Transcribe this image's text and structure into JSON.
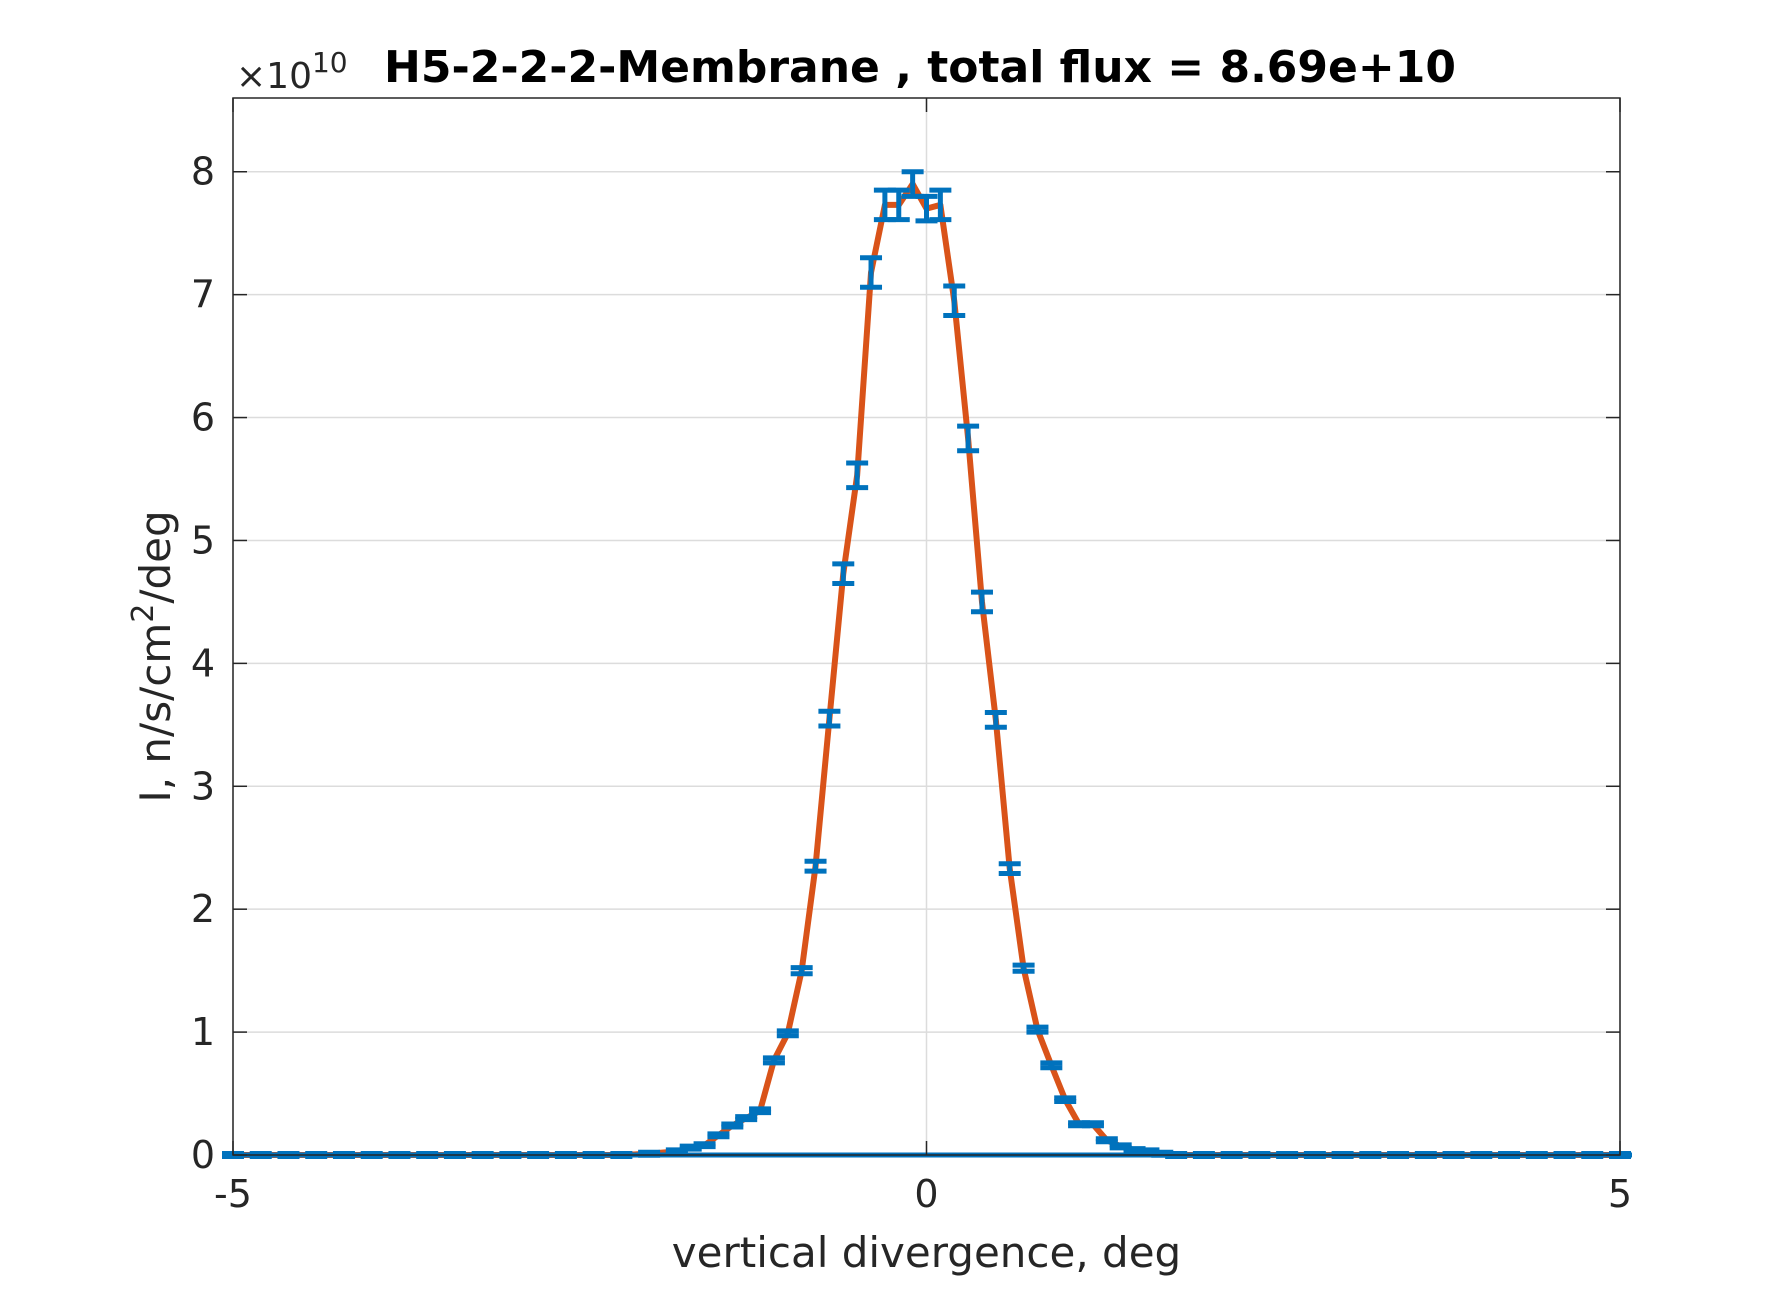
{
  "chart_data": {
    "type": "line",
    "title": "H5-2-2-2-Membrane , total flux =  8.69e+10",
    "xlabel": "vertical divergence, deg",
    "ylabel_main": "I, n/s/cm",
    "ylabel_sup": "2",
    "ylabel_tail": "/deg",
    "exponent_prefix": "×10",
    "exponent_power": "10",
    "y_scale": 10000000000,
    "xlim": [
      -5,
      5
    ],
    "ylim": [
      0,
      8.6
    ],
    "x_ticks": [
      -5,
      0,
      5
    ],
    "x_tick_labels": [
      "-5",
      "0",
      "5"
    ],
    "y_ticks": [
      0,
      1,
      2,
      3,
      4,
      5,
      6,
      7,
      8
    ],
    "y_tick_labels": [
      "0",
      "1",
      "2",
      "3",
      "4",
      "5",
      "6",
      "7",
      "8"
    ],
    "grid": true,
    "line_color": "#D95319",
    "errorbar_color": "#0072BD",
    "series": [
      {
        "x": [
          -5.0,
          -4.8,
          -4.6,
          -4.4,
          -4.2,
          -4.0,
          -3.8,
          -3.6,
          -3.4,
          -3.2,
          -3.0,
          -2.8,
          -2.6,
          -2.4,
          -2.2,
          -2.0,
          -1.8,
          -1.7,
          -1.6,
          -1.5,
          -1.4,
          -1.3,
          -1.2,
          -1.1,
          -1.0,
          -0.9,
          -0.8,
          -0.7,
          -0.6,
          -0.5,
          -0.4,
          -0.3,
          -0.2,
          -0.1,
          0.0,
          0.1,
          0.2,
          0.3,
          0.4,
          0.5,
          0.6,
          0.7,
          0.8,
          0.9,
          1.0,
          1.1,
          1.2,
          1.3,
          1.4,
          1.5,
          1.6,
          1.7,
          1.8,
          2.0,
          2.2,
          2.4,
          2.6,
          2.8,
          3.0,
          3.2,
          3.4,
          3.6,
          3.8,
          4.0,
          4.2,
          4.4,
          4.6,
          4.8,
          5.0
        ],
        "y": [
          0,
          0,
          0,
          0,
          0,
          0,
          0,
          0,
          0,
          0,
          0,
          0,
          0,
          0,
          0,
          0.01,
          0.03,
          0.06,
          0.08,
          0.16,
          0.24,
          0.3,
          0.36,
          0.77,
          0.99,
          1.5,
          2.35,
          3.55,
          4.73,
          5.53,
          7.18,
          7.73,
          7.73,
          7.9,
          7.7,
          7.73,
          6.95,
          5.83,
          4.5,
          3.54,
          2.33,
          1.52,
          1.02,
          0.73,
          0.45,
          0.25,
          0.25,
          0.12,
          0.07,
          0.04,
          0.03,
          0.01,
          0,
          0,
          0,
          0,
          0,
          0,
          0,
          0,
          0,
          0,
          0,
          0,
          0,
          0,
          0,
          0,
          0
        ],
        "err": [
          0,
          0,
          0,
          0,
          0,
          0,
          0,
          0,
          0,
          0,
          0,
          0,
          0,
          0,
          0,
          0,
          0,
          0.005,
          0.005,
          0.01,
          0.01,
          0.01,
          0.015,
          0.02,
          0.02,
          0.025,
          0.04,
          0.06,
          0.08,
          0.1,
          0.12,
          0.12,
          0.12,
          0.1,
          0.1,
          0.12,
          0.12,
          0.1,
          0.08,
          0.06,
          0.04,
          0.025,
          0.02,
          0.02,
          0.015,
          0.01,
          0.01,
          0.01,
          0.005,
          0.005,
          0,
          0,
          0,
          0,
          0,
          0,
          0,
          0,
          0,
          0,
          0,
          0,
          0,
          0,
          0,
          0,
          0,
          0,
          0
        ]
      }
    ]
  }
}
